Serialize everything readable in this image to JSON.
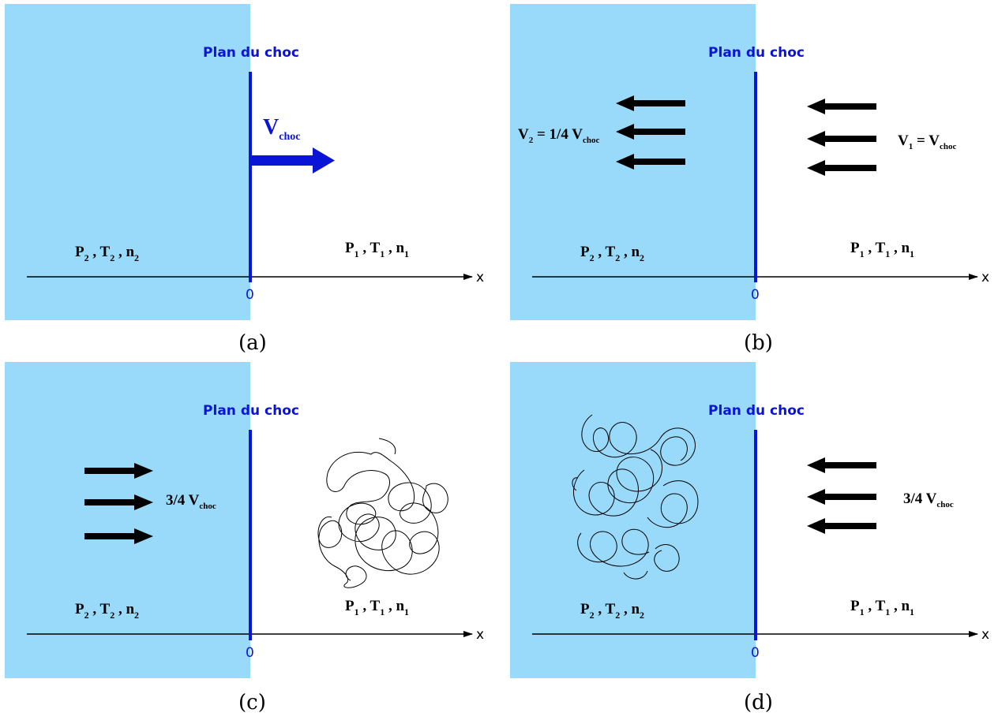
{
  "colors": {
    "downstream_fill": "#99d9f9",
    "shock_blue": "#0a14d6",
    "arrow_black": "#000000"
  },
  "common": {
    "shock_plane_label": "Plan du choc",
    "axis_label": "x",
    "origin_label": "0",
    "downstream_state": {
      "P": "P",
      "T": "T",
      "n": "n",
      "sub": "2",
      "sep": " , "
    },
    "upstream_state": {
      "P": "P",
      "T": "T",
      "n": "n",
      "sub": "1",
      "sep": " , "
    }
  },
  "panels": {
    "a": {
      "caption": "(a)",
      "velocity": {
        "main": "V",
        "sub": "choc"
      }
    },
    "b": {
      "caption": "(b)",
      "left_velocity": {
        "main": "V",
        "sub": "2",
        "eq": " = 1/4 V",
        "sub2": "choc"
      },
      "right_velocity": {
        "main": "V",
        "sub": "1",
        "eq": " = V",
        "sub2": "choc"
      }
    },
    "c": {
      "caption": "(c)",
      "velocity": {
        "main": "3/4 V",
        "sub": "choc"
      }
    },
    "d": {
      "caption": "(d)",
      "velocity": {
        "main": "3/4 V",
        "sub": "choc"
      }
    }
  }
}
